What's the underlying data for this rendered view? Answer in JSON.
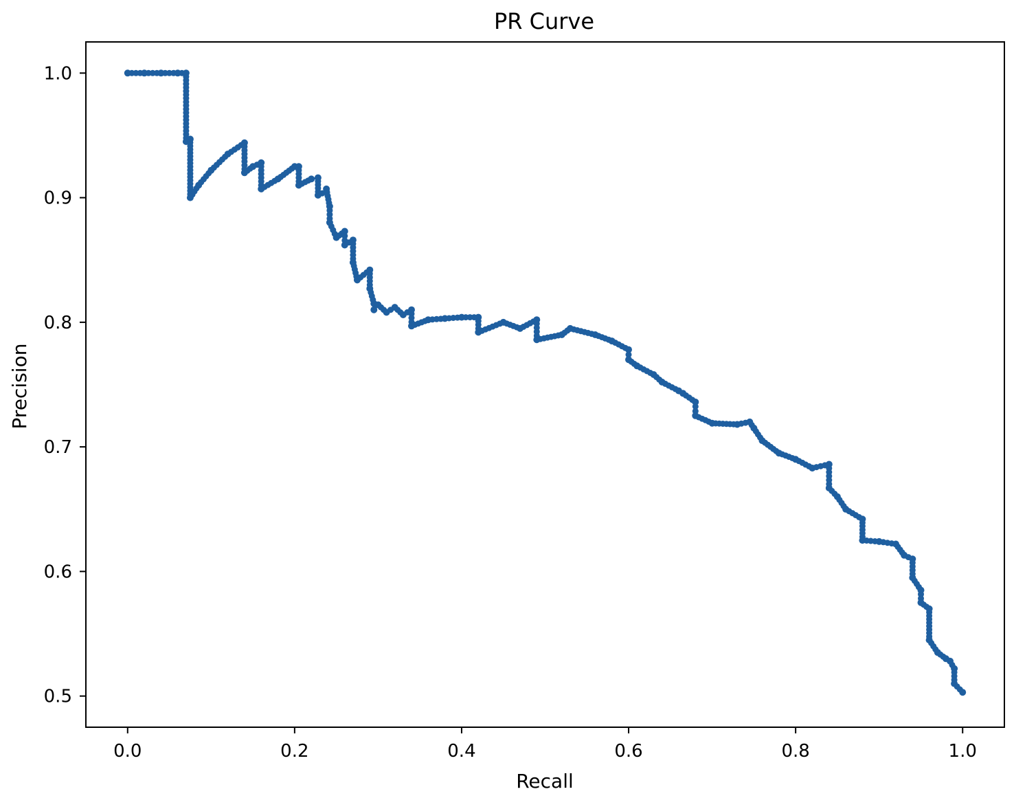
{
  "chart_data": {
    "type": "line",
    "title": "PR Curve",
    "xlabel": "Recall",
    "ylabel": "Precision",
    "xlim": [
      -0.05,
      1.05
    ],
    "ylim": [
      0.475,
      1.025
    ],
    "xticks": [
      0.0,
      0.2,
      0.4,
      0.6,
      0.8,
      1.0
    ],
    "xtick_labels": [
      "0.0",
      "0.2",
      "0.4",
      "0.6",
      "0.8",
      "1.0"
    ],
    "yticks": [
      0.5,
      0.6,
      0.7,
      0.8,
      0.9,
      1.0
    ],
    "ytick_labels": [
      "0.5",
      "0.6",
      "0.7",
      "0.8",
      "0.9",
      "1.0"
    ],
    "grid": false,
    "legend": "none",
    "line_color": "#1f5fa0",
    "marker": "circle",
    "series": [
      {
        "x": [
          0.0,
          0.02,
          0.04,
          0.06,
          0.07,
          0.07,
          0.075,
          0.075,
          0.085,
          0.1,
          0.12,
          0.14,
          0.14,
          0.15,
          0.16,
          0.16,
          0.18,
          0.2,
          0.205,
          0.205,
          0.22,
          0.228,
          0.228,
          0.238,
          0.238,
          0.242,
          0.242,
          0.25,
          0.26,
          0.26,
          0.27,
          0.27,
          0.275,
          0.275,
          0.29,
          0.29,
          0.295,
          0.295,
          0.3,
          0.31,
          0.32,
          0.33,
          0.34,
          0.34,
          0.36,
          0.38,
          0.4,
          0.42,
          0.42,
          0.45,
          0.47,
          0.49,
          0.49,
          0.52,
          0.53,
          0.56,
          0.58,
          0.6,
          0.6,
          0.61,
          0.63,
          0.64,
          0.66,
          0.665,
          0.68,
          0.68,
          0.7,
          0.73,
          0.745,
          0.75,
          0.76,
          0.78,
          0.8,
          0.82,
          0.84,
          0.84,
          0.85,
          0.86,
          0.88,
          0.88,
          0.9,
          0.92,
          0.93,
          0.94,
          0.94,
          0.95,
          0.95,
          0.96,
          0.96,
          0.97,
          0.98,
          0.985,
          0.99,
          0.99,
          1.0
        ],
        "y": [
          1.0,
          1.0,
          1.0,
          1.0,
          1.0,
          0.945,
          0.947,
          0.9,
          0.91,
          0.922,
          0.935,
          0.944,
          0.92,
          0.925,
          0.928,
          0.907,
          0.915,
          0.925,
          0.925,
          0.91,
          0.915,
          0.916,
          0.902,
          0.905,
          0.907,
          0.893,
          0.88,
          0.868,
          0.873,
          0.862,
          0.866,
          0.848,
          0.834,
          0.834,
          0.842,
          0.827,
          0.815,
          0.81,
          0.814,
          0.808,
          0.812,
          0.806,
          0.81,
          0.797,
          0.802,
          0.803,
          0.804,
          0.804,
          0.792,
          0.8,
          0.795,
          0.802,
          0.786,
          0.79,
          0.795,
          0.79,
          0.785,
          0.778,
          0.77,
          0.765,
          0.758,
          0.752,
          0.745,
          0.743,
          0.736,
          0.725,
          0.719,
          0.718,
          0.72,
          0.715,
          0.705,
          0.695,
          0.69,
          0.683,
          0.686,
          0.667,
          0.66,
          0.65,
          0.642,
          0.625,
          0.624,
          0.622,
          0.613,
          0.61,
          0.595,
          0.585,
          0.575,
          0.57,
          0.545,
          0.535,
          0.53,
          0.528,
          0.522,
          0.51,
          0.503
        ]
      }
    ]
  }
}
